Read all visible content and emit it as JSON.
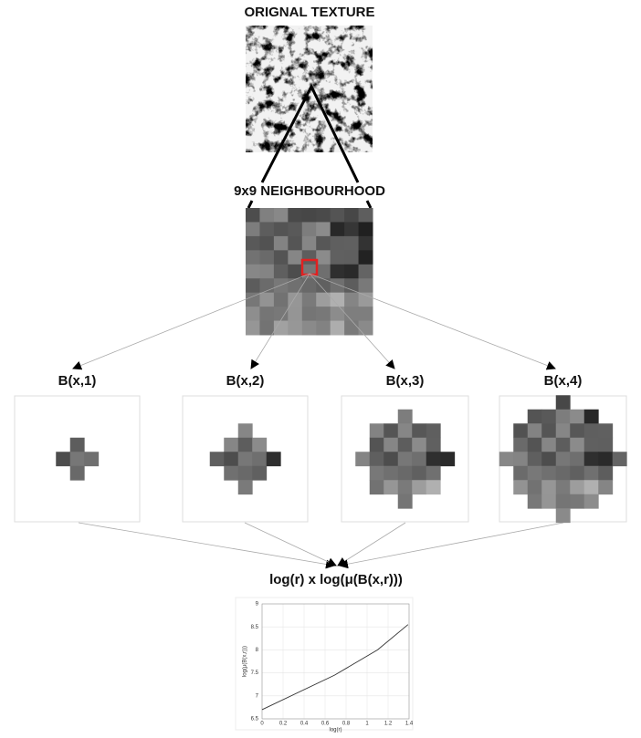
{
  "texture_title": "ORIGNAL TEXTURE",
  "neighbourhood_title": "9x9 NEIGHBOURHOOD",
  "balls": [
    "B(x,1)",
    "B(x,2)",
    "B(x,3)",
    "B(x,4)"
  ],
  "plot_title": "log(r) x log(μ(B(x,r)))",
  "plot": {
    "type": "line",
    "x": [
      0,
      0.69,
      1.1,
      1.39
    ],
    "values": [
      6.7,
      7.45,
      8.0,
      8.55
    ],
    "xlabel": "log(r)",
    "ylabel": "log(μ(B(x,r)))",
    "xlim": [
      0,
      1.4
    ],
    "ylim": [
      6.5,
      9
    ],
    "xticks": [
      0,
      0.2,
      0.4,
      0.6,
      0.8,
      1,
      1.2,
      1.4
    ],
    "yticks": [
      6.5,
      7,
      7.5,
      8,
      8.5,
      9
    ],
    "grid": true,
    "color": "#333333"
  }
}
